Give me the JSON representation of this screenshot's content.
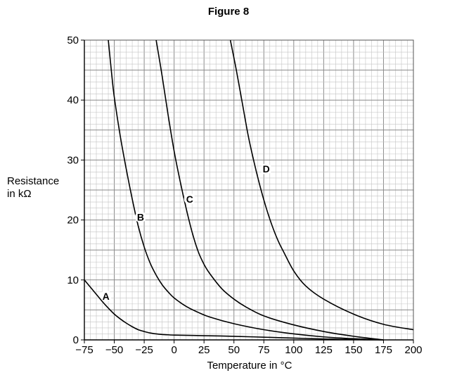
{
  "title": "Figure 8",
  "chart_data": {
    "type": "line",
    "xlabel": "Temperature in °C",
    "ylabel_line1": "Resistance",
    "ylabel_line2": "in kΩ",
    "xlim": [
      -75,
      200
    ],
    "ylim": [
      0,
      50
    ],
    "xticks": [
      -75,
      -50,
      -25,
      0,
      25,
      50,
      75,
      100,
      125,
      150,
      175,
      200
    ],
    "xtick_labels": [
      "−75",
      "−50",
      "−25",
      "0",
      "25",
      "50",
      "75",
      "100",
      "125",
      "150",
      "175",
      "200"
    ],
    "yticks": [
      0,
      10,
      20,
      30,
      40,
      50
    ],
    "ytick_labels": [
      "0",
      "10",
      "20",
      "30",
      "40",
      "50"
    ],
    "grid": true,
    "series": [
      {
        "name": "A",
        "x": [
          -75,
          -70,
          -65,
          -60,
          -55,
          -50,
          -45,
          -40,
          -35,
          -30,
          -25,
          -20,
          -15,
          -10,
          -5,
          0,
          25,
          50,
          75,
          100,
          125,
          150,
          175
        ],
        "y": [
          10,
          8.8,
          7.6,
          6.4,
          5.3,
          4.3,
          3.5,
          2.8,
          2.2,
          1.7,
          1.4,
          1.15,
          1.0,
          0.9,
          0.85,
          0.8,
          0.7,
          0.6,
          0.45,
          0.3,
          0.15,
          0.05,
          0
        ]
      },
      {
        "name": "B",
        "x": [
          -55,
          -52,
          -50,
          -45,
          -40,
          -35,
          -30,
          -25,
          -20,
          -15,
          -10,
          -5,
          0,
          10,
          20,
          30,
          50,
          75,
          100,
          125,
          150,
          175
        ],
        "y": [
          50,
          44,
          40.5,
          34,
          28.5,
          23.5,
          19,
          15.5,
          12.8,
          10.8,
          9.2,
          8,
          7,
          5.6,
          4.6,
          3.8,
          2.7,
          1.7,
          1.0,
          0.5,
          0.2,
          0
        ]
      },
      {
        "name": "C",
        "x": [
          -15,
          -10,
          -5,
          0,
          5,
          10,
          15,
          20,
          25,
          30,
          40,
          50,
          60,
          75,
          100,
          125,
          150,
          175
        ],
        "y": [
          50,
          44,
          37.5,
          31.5,
          26.5,
          22,
          18,
          14.8,
          12.6,
          11,
          8.5,
          6.8,
          5.5,
          4.0,
          2.5,
          1.4,
          0.6,
          0
        ]
      },
      {
        "name": "D",
        "x": [
          47,
          52,
          57,
          62,
          67,
          72,
          77,
          82,
          87,
          92,
          100,
          110,
          125,
          150,
          175,
          200
        ],
        "y": [
          50,
          45,
          39.5,
          34,
          29.5,
          25.5,
          22,
          19,
          16.5,
          14.5,
          11.5,
          9,
          6.8,
          4.3,
          2.6,
          1.7
        ]
      }
    ],
    "annotations": [
      {
        "text": "A",
        "x": -57,
        "y": 7.3
      },
      {
        "text": "B",
        "x": -28,
        "y": 20.5
      },
      {
        "text": "C",
        "x": 13,
        "y": 23.5
      },
      {
        "text": "D",
        "x": 77,
        "y": 28.5
      }
    ]
  }
}
